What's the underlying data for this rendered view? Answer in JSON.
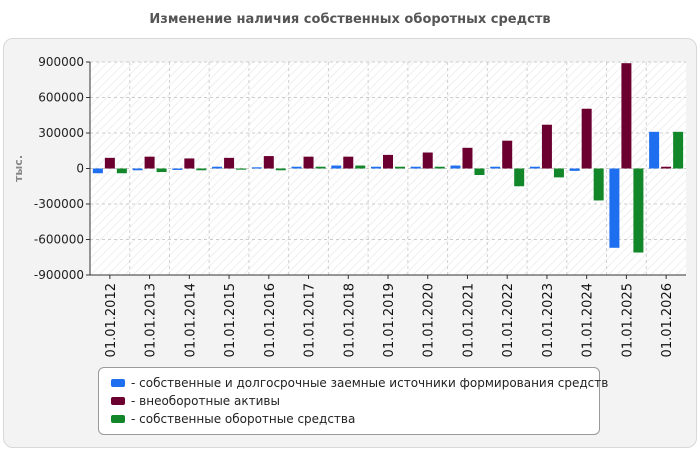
{
  "title": "Изменение наличия собственных оборотных средств",
  "colors": {
    "series1": "#1E6EF0",
    "series2": "#6B0030",
    "series3": "#12872A"
  },
  "legend_prefix": "- ",
  "chart_data": {
    "type": "bar",
    "title": "Изменение наличия собственных оборотных средств",
    "xlabel": "",
    "ylabel": "тыс.",
    "ylim": [
      -900000,
      900000
    ],
    "yticks": [
      900000,
      600000,
      300000,
      0,
      -300000,
      -600000,
      -900000
    ],
    "grid": true,
    "legend_position": "bottom",
    "categories": [
      "01.01.2012",
      "01.01.2013",
      "01.01.2014",
      "01.01.2015",
      "01.01.2016",
      "01.01.2017",
      "01.01.2018",
      "01.01.2019",
      "01.01.2020",
      "01.01.2021",
      "01.01.2022",
      "01.01.2023",
      "01.01.2024",
      "01.01.2025",
      "01.01.2026"
    ],
    "series": [
      {
        "name": "собственные и долгосрочные заемные источники формирования средств",
        "color": "#1E6EF0",
        "values": [
          -40000,
          -15000,
          -12000,
          15000,
          10000,
          15000,
          25000,
          15000,
          15000,
          25000,
          15000,
          15000,
          -20000,
          -670000,
          310000
        ]
      },
      {
        "name": "внеоборотные активы",
        "color": "#6B0030",
        "values": [
          90000,
          100000,
          85000,
          90000,
          105000,
          100000,
          100000,
          115000,
          135000,
          175000,
          235000,
          370000,
          505000,
          890000,
          15000
        ]
      },
      {
        "name": "собственные оборотные средства",
        "color": "#12872A",
        "values": [
          -40000,
          -30000,
          -15000,
          -10000,
          -15000,
          15000,
          25000,
          15000,
          15000,
          -55000,
          -150000,
          -75000,
          -270000,
          -710000,
          310000
        ]
      }
    ]
  }
}
